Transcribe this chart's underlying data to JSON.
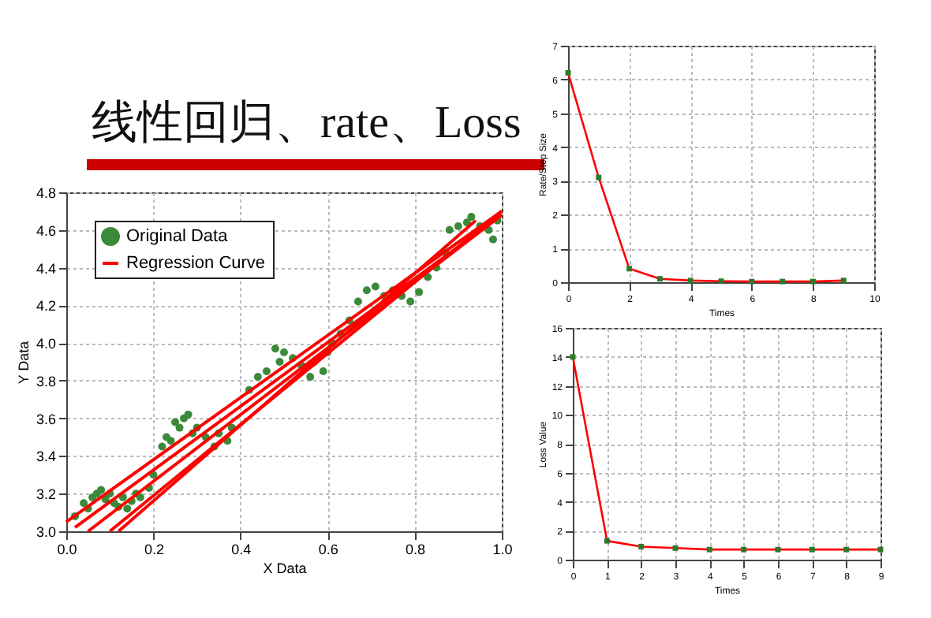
{
  "chart_data": [
    {
      "type": "scatter",
      "title": "线性回归、rate、Loss",
      "xlabel": "X Data",
      "ylabel": "Y Data",
      "xlim": [
        0,
        1
      ],
      "xticks": [
        {
          "value": 0,
          "label": "0.0"
        },
        0.2,
        0.4,
        0.6,
        0.8,
        {
          "value": 1,
          "label": "1.0"
        }
      ],
      "ylim": [
        3,
        4.8
      ],
      "yticks": [
        {
          "value": 3,
          "label": "3.0"
        },
        3.2,
        3.4,
        3.6,
        3.8,
        {
          "value": 4,
          "label": "4.0"
        },
        4.2,
        4.4,
        4.6,
        4.8
      ],
      "grid": true,
      "legend": "top left",
      "series": [
        {
          "name": "Original Data",
          "marker": "circle",
          "color": "#3a8a3a",
          "x": [
            0.02,
            0.04,
            0.05,
            0.06,
            0.07,
            0.08,
            0.09,
            0.1,
            0.11,
            0.12,
            0.13,
            0.14,
            0.15,
            0.16,
            0.17,
            0.19,
            0.2,
            0.22,
            0.23,
            0.24,
            0.25,
            0.26,
            0.27,
            0.28,
            0.29,
            0.3,
            0.32,
            0.34,
            0.35,
            0.37,
            0.38,
            0.42,
            0.44,
            0.46,
            0.48,
            0.49,
            0.5,
            0.52,
            0.54,
            0.56,
            0.57,
            0.59,
            0.6,
            0.61,
            0.63,
            0.65,
            0.67,
            0.69,
            0.71,
            0.73,
            0.75,
            0.77,
            0.79,
            0.81,
            0.83,
            0.85,
            0.87,
            0.88,
            0.9,
            0.92,
            0.93,
            0.95,
            0.97,
            0.98,
            0.99
          ],
          "values": [
            3.08,
            3.15,
            3.12,
            3.18,
            3.2,
            3.22,
            3.17,
            3.2,
            3.15,
            3.13,
            3.18,
            3.12,
            3.16,
            3.2,
            3.18,
            3.23,
            3.3,
            3.45,
            3.5,
            3.48,
            3.58,
            3.55,
            3.6,
            3.62,
            3.52,
            3.55,
            3.5,
            3.45,
            3.52,
            3.48,
            3.55,
            3.75,
            3.82,
            3.85,
            3.97,
            3.9,
            3.95,
            3.92,
            3.88,
            3.82,
            3.9,
            3.85,
            3.95,
            4,
            4.05,
            4.12,
            4.22,
            4.28,
            4.3,
            4.25,
            4.28,
            4.25,
            4.22,
            4.27,
            4.35,
            4.4,
            4.48,
            4.6,
            4.62,
            4.64,
            4.67,
            4.62,
            4.6,
            4.55,
            4.65
          ]
        },
        {
          "name": "Regression Curve",
          "type": "line",
          "color": "#ff0000",
          "x": [
            0,
            1
          ],
          "values": [
            3.05,
            4.7
          ]
        },
        {
          "type": "line",
          "color": "#ff0000",
          "x": [
            0.02,
            1
          ],
          "values": [
            3.02,
            4.68
          ]
        },
        {
          "type": "line",
          "color": "#ff0000",
          "x": [
            0.05,
            1
          ],
          "values": [
            3,
            4.68
          ]
        },
        {
          "type": "line",
          "color": "#ff0000",
          "x": [
            0.1,
            1
          ],
          "values": [
            3,
            4.7
          ]
        },
        {
          "type": "line",
          "color": "#ff0000",
          "x": [
            0.12,
            0.94
          ],
          "values": [
            3,
            4.65
          ]
        }
      ]
    },
    {
      "type": "line",
      "xlabel": "Times",
      "ylabel": "Rate/Step Size",
      "xlim": [
        0,
        10
      ],
      "xticks": [
        0,
        2,
        4,
        6,
        8,
        10
      ],
      "ylim": [
        0,
        7
      ],
      "yticks": [
        0,
        1,
        2,
        3,
        4,
        5,
        6,
        7
      ],
      "grid": true,
      "series": [
        {
          "color": "#ff0000",
          "x": [
            0,
            1,
            2,
            3,
            4,
            5,
            6,
            7,
            8,
            9
          ],
          "values": [
            6.2,
            3.1,
            0.4,
            0.1,
            0.05,
            0.03,
            0.02,
            0.02,
            0.02,
            0.05
          ]
        },
        {
          "type": "scatter",
          "marker": "square",
          "color": "#2a7a2a",
          "x": [
            0,
            1,
            2,
            3,
            4,
            5,
            6,
            7,
            8,
            9
          ],
          "values": [
            6.2,
            3.1,
            0.4,
            0.1,
            0.05,
            0.03,
            0.02,
            0.02,
            0.02,
            0.05
          ]
        }
      ]
    },
    {
      "type": "line",
      "xlabel": "Times",
      "ylabel": "Loss Value",
      "xlim": [
        0,
        9
      ],
      "xticks": [
        0,
        1,
        2,
        3,
        4,
        5,
        6,
        7,
        8,
        9
      ],
      "ylim": [
        0,
        16
      ],
      "yticks": [
        0,
        2,
        4,
        6,
        8,
        10,
        12,
        14,
        16
      ],
      "grid": true,
      "series": [
        {
          "color": "#ff0000",
          "x": [
            0,
            1,
            2,
            3,
            4,
            5,
            6,
            7,
            8,
            9
          ],
          "values": [
            14,
            1.3,
            0.9,
            0.8,
            0.7,
            0.7,
            0.7,
            0.7,
            0.7,
            0.7
          ]
        },
        {
          "type": "scatter",
          "marker": "square",
          "color": "#2a7a2a",
          "x": [
            0,
            1,
            2,
            3,
            4,
            5,
            6,
            7,
            8,
            9
          ],
          "values": [
            14,
            1.3,
            0.9,
            0.8,
            0.7,
            0.7,
            0.7,
            0.7,
            0.7,
            0.7
          ]
        }
      ]
    }
  ]
}
